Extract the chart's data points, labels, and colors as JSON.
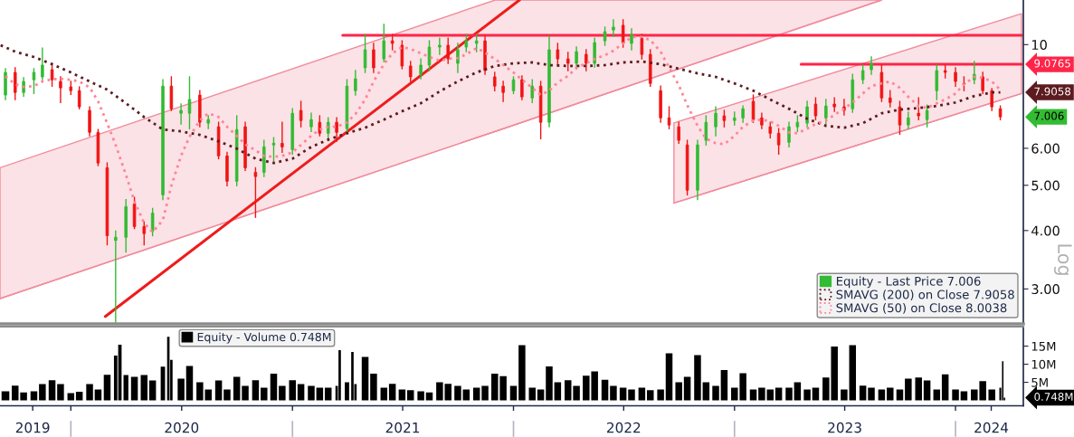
{
  "chart_data": [
    {
      "type": "candlestick",
      "ylabel": "Log",
      "log": true,
      "xlim": [
        "2019-09-06",
        "2024-04-22"
      ],
      "ylim": [
        2.525,
        12.46
      ],
      "yticks": [
        {
          "value": 3,
          "label": "3.00"
        },
        {
          "value": 4,
          "label": "4.00"
        },
        {
          "value": 5,
          "label": "5.00"
        },
        {
          "value": 6,
          "label": "6.00"
        },
        10
      ],
      "tick_labels": "y",
      "legend": "bottom right",
      "annotations": [
        {
          "text": "7.9058",
          "x": "2024-04-22",
          "y": 7.9058
        }
      ],
      "x": [
        "2019-09-15",
        "2019-10-01",
        "2019-10-15",
        "2019-11-01",
        "2019-11-15",
        "2019-12-01",
        "2019-12-15",
        "2020-01-01",
        "2020-01-15",
        "2020-02-01",
        "2020-02-15",
        "2020-03-01",
        "2020-03-15",
        "2020-04-01",
        "2020-04-15",
        "2020-05-01",
        "2020-05-15",
        "2020-06-01",
        "2020-06-15",
        "2020-07-01",
        "2020-07-15",
        "2020-08-01",
        "2020-08-15",
        "2020-09-01",
        "2020-09-15",
        "2020-10-01",
        "2020-10-15",
        "2020-11-01",
        "2020-11-15",
        "2020-12-01",
        "2020-12-15",
        "2021-01-01",
        "2021-01-15",
        "2021-02-01",
        "2021-02-15",
        "2021-03-01",
        "2021-03-15",
        "2021-04-01",
        "2021-04-15",
        "2021-05-01",
        "2021-05-15",
        "2021-06-01",
        "2021-06-15",
        "2021-07-01",
        "2021-07-15",
        "2021-08-01",
        "2021-08-15",
        "2021-09-01",
        "2021-09-15",
        "2021-10-01",
        "2021-10-15",
        "2021-11-01",
        "2021-11-15",
        "2021-12-01",
        "2021-12-15",
        "2022-01-01",
        "2022-01-15",
        "2022-02-01",
        "2022-02-15",
        "2022-03-01",
        "2022-03-15",
        "2022-04-01",
        "2022-04-15",
        "2022-05-01",
        "2022-05-15",
        "2022-06-01",
        "2022-06-15",
        "2022-07-01",
        "2022-07-15",
        "2022-08-01",
        "2022-08-15",
        "2022-09-01",
        "2022-09-15",
        "2022-10-01",
        "2022-10-15",
        "2022-11-01",
        "2022-11-15",
        "2022-12-01",
        "2022-12-15",
        "2023-01-01",
        "2023-01-15",
        "2023-02-01",
        "2023-02-15",
        "2023-03-01",
        "2023-03-15",
        "2023-04-01",
        "2023-04-15",
        "2023-05-01",
        "2023-05-15",
        "2023-06-01",
        "2023-06-15",
        "2023-07-01",
        "2023-07-15",
        "2023-08-01",
        "2023-08-15",
        "2023-09-01",
        "2023-09-15",
        "2023-10-01",
        "2023-10-15",
        "2023-11-01",
        "2023-11-15",
        "2023-12-01",
        "2023-12-15",
        "2024-01-01",
        "2024-01-15",
        "2024-02-01",
        "2024-02-15",
        "2024-03-01",
        "2024-03-15"
      ],
      "series": [
        {
          "name": "Equity - Last Price 7.006",
          "type": "candlestick",
          "color": "#33bb33",
          "colors": [
            "#33bb33",
            "#f01414",
            "#33bb33",
            "#33bb33",
            "#33bb33",
            "#f01414",
            "#f01414",
            "#f01414",
            "#f01414",
            "#f01414",
            "#f01414",
            "#f01414",
            "#33bb33",
            "#33bb33",
            "#f01414",
            "#f01414",
            "#33bb33",
            "#33bb33",
            "#f01414",
            "#33bb33",
            "#33bb33",
            "#f01414",
            "#33bb33",
            "#f01414",
            "#f01414",
            "#33bb33",
            "#f01414",
            "#f01414",
            "#33bb33",
            "#33bb33",
            "#f01414",
            "#33bb33",
            "#f01414",
            "#33bb33",
            "#f01414",
            "#33bb33",
            "#f01414",
            "#33bb33",
            "#33bb33",
            "#33bb33",
            "#f01414",
            "#33bb33",
            "#f01414",
            "#f01414",
            "#f01414",
            "#33bb33",
            "#33bb33",
            "#33bb33",
            "#f01414",
            "#33bb33",
            "#33bb33",
            "#33bb33",
            "#f01414",
            "#f01414",
            "#f01414",
            "#33bb33",
            "#f01414",
            "#33bb33",
            "#f01414",
            "#33bb33",
            "#f01414",
            "#f01414",
            "#33bb33",
            "#f01414",
            "#33bb33",
            "#33bb33",
            "#33bb33",
            "#f01414",
            "#33bb33",
            "#f01414",
            "#f01414",
            "#f01414",
            "#f01414",
            "#f01414",
            "#f01414",
            "#33bb33",
            "#33bb33",
            "#33bb33",
            "#f01414",
            "#33bb33",
            "#33bb33",
            "#f01414",
            "#f01414",
            "#f01414",
            "#f01414",
            "#33bb33",
            "#33bb33",
            "#33bb33",
            "#f01414",
            "#33bb33",
            "#f01414",
            "#f01414",
            "#33bb33",
            "#33bb33",
            "#33bb33",
            "#f01414",
            "#f01414",
            "#f01414",
            "#33bb33",
            "#f01414",
            "#33bb33",
            "#33bb33",
            "#f01414",
            "#f01414",
            "#f01414",
            "#33bb33",
            "#f01414",
            "#f01414",
            "#f01414"
          ],
          "ohlc": [
            [
              7.8,
              8.88,
              7.63,
              8.72
            ],
            [
              8.72,
              8.92,
              7.63,
              7.9
            ],
            [
              7.9,
              8.49,
              7.76,
              8.34
            ],
            [
              8.41,
              8.88,
              7.86,
              8.72
            ],
            [
              8.53,
              9.83,
              8.41,
              9.04
            ],
            [
              8.84,
              9.12,
              8.15,
              8.41
            ],
            [
              8.34,
              8.53,
              7.52,
              8.08
            ],
            [
              8.12,
              8.34,
              7.83,
              7.97
            ],
            [
              7.97,
              8.12,
              7.29,
              7.36
            ],
            [
              7.23,
              7.36,
              6.38,
              6.49
            ],
            [
              6.49,
              6.58,
              5.51,
              5.58
            ],
            [
              5.45,
              5.58,
              3.73,
              3.9
            ],
            [
              3.81,
              3.99,
              2.55,
              3.87
            ],
            [
              3.87,
              4.66,
              3.6,
              4.5
            ],
            [
              4.56,
              4.71,
              4.04,
              4.08
            ],
            [
              4.08,
              4.17,
              3.73,
              3.94
            ],
            [
              3.99,
              4.46,
              3.9,
              4.36
            ],
            [
              4.77,
              8.41,
              4.66,
              8.15
            ],
            [
              8.15,
              8.53,
              7.23,
              7.29
            ],
            [
              7.13,
              7.46,
              6.76,
              7.23
            ],
            [
              7.13,
              8.53,
              6.61,
              7.63
            ],
            [
              7.8,
              7.97,
              6.67,
              6.82
            ],
            [
              6.79,
              7.04,
              6.61,
              6.91
            ],
            [
              6.67,
              6.82,
              5.7,
              5.78
            ],
            [
              5.78,
              5.88,
              4.99,
              5.1
            ],
            [
              5.1,
              7.04,
              4.99,
              6.58
            ],
            [
              6.67,
              6.82,
              5.38,
              5.45
            ],
            [
              5.33,
              5.45,
              4.27,
              5.22
            ],
            [
              5.33,
              6.24,
              5.22,
              6.04
            ],
            [
              6.1,
              6.32,
              5.63,
              6.15
            ],
            [
              6.15,
              6.82,
              5.88,
              6.04
            ],
            [
              5.96,
              7.29,
              5.83,
              7.13
            ],
            [
              7.23,
              7.56,
              6.67,
              6.88
            ],
            [
              6.67,
              7.13,
              6.52,
              6.91
            ],
            [
              6.82,
              7.04,
              6.38,
              6.46
            ],
            [
              6.46,
              6.97,
              6.32,
              6.82
            ],
            [
              6.82,
              6.97,
              6.21,
              6.49
            ],
            [
              6.61,
              8.41,
              6.49,
              8.15
            ],
            [
              7.97,
              8.8,
              7.8,
              8.45
            ],
            [
              8.92,
              10.51,
              8.72,
              9.75
            ],
            [
              9.75,
              10.06,
              8.72,
              8.92
            ],
            [
              9.32,
              11.05,
              9.2,
              10.19
            ],
            [
              10.19,
              10.51,
              9.75,
              10.06
            ],
            [
              9.97,
              10.19,
              8.88,
              9.0
            ],
            [
              9.0,
              9.2,
              8.34,
              8.53
            ],
            [
              8.64,
              9.32,
              8.45,
              9.04
            ],
            [
              9.04,
              10.19,
              8.8,
              9.88
            ],
            [
              9.88,
              10.32,
              9.53,
              9.97
            ],
            [
              9.97,
              10.32,
              9.12,
              9.32
            ],
            [
              9.12,
              10.06,
              8.72,
              9.75
            ],
            [
              9.88,
              10.51,
              9.66,
              10.19
            ],
            [
              10.06,
              10.51,
              9.66,
              10.19
            ],
            [
              10.19,
              10.42,
              8.64,
              8.8
            ],
            [
              8.53,
              8.72,
              7.97,
              8.15
            ],
            [
              8.15,
              8.34,
              7.56,
              7.9
            ],
            [
              7.97,
              8.53,
              7.86,
              8.41
            ],
            [
              8.41,
              8.57,
              7.63,
              7.73
            ],
            [
              7.69,
              8.41,
              7.52,
              8.15
            ],
            [
              8.15,
              8.34,
              6.29,
              6.82
            ],
            [
              6.82,
              10.42,
              6.67,
              9.75
            ],
            [
              9.75,
              10.06,
              9.04,
              9.32
            ],
            [
              9.32,
              9.62,
              8.8,
              9.12
            ],
            [
              9.12,
              9.88,
              8.88,
              9.66
            ],
            [
              9.53,
              9.75,
              8.8,
              9.12
            ],
            [
              9.12,
              10.32,
              8.96,
              10.1
            ],
            [
              10.19,
              10.9,
              9.97,
              10.66
            ],
            [
              10.75,
              11.3,
              10.42,
              10.9
            ],
            [
              11.0,
              11.3,
              9.88,
              10.06
            ],
            [
              10.06,
              10.8,
              9.75,
              10.51
            ],
            [
              10.32,
              10.51,
              9.32,
              9.53
            ],
            [
              9.53,
              9.75,
              8.15,
              8.26
            ],
            [
              7.97,
              8.15,
              6.82,
              6.97
            ],
            [
              6.97,
              7.36,
              6.61,
              6.73
            ],
            [
              6.67,
              6.82,
              6.15,
              6.24
            ],
            [
              6.1,
              6.24,
              4.77,
              4.88
            ],
            [
              4.88,
              6.24,
              4.66,
              6.1
            ],
            [
              6.24,
              7.04,
              6.1,
              6.82
            ],
            [
              6.67,
              7.36,
              6.38,
              7.13
            ],
            [
              7.04,
              7.23,
              6.67,
              6.88
            ],
            [
              6.88,
              7.17,
              6.73,
              6.97
            ],
            [
              6.97,
              7.39,
              6.82,
              7.29
            ],
            [
              7.56,
              7.8,
              6.82,
              6.91
            ],
            [
              6.97,
              7.13,
              6.61,
              6.73
            ],
            [
              6.67,
              6.82,
              6.32,
              6.46
            ],
            [
              6.46,
              6.61,
              5.83,
              6.1
            ],
            [
              6.18,
              6.82,
              6.04,
              6.67
            ],
            [
              6.67,
              7.04,
              6.52,
              6.82
            ],
            [
              6.79,
              7.56,
              6.67,
              7.36
            ],
            [
              7.46,
              7.69,
              6.91,
              7.04
            ],
            [
              6.97,
              7.63,
              6.76,
              7.39
            ],
            [
              7.46,
              7.69,
              7.2,
              7.36
            ],
            [
              7.36,
              7.63,
              7.07,
              7.23
            ],
            [
              7.29,
              8.64,
              7.17,
              8.41
            ],
            [
              8.41,
              9.04,
              8.26,
              8.8
            ],
            [
              8.84,
              9.41,
              8.64,
              9.12
            ],
            [
              8.72,
              9.04,
              7.56,
              7.69
            ],
            [
              7.69,
              7.97,
              7.36,
              7.52
            ],
            [
              7.36,
              7.56,
              6.43,
              6.73
            ],
            [
              6.73,
              7.17,
              6.61,
              6.97
            ],
            [
              7.13,
              7.69,
              6.91,
              7.04
            ],
            [
              6.91,
              7.42,
              6.67,
              7.23
            ],
            [
              7.97,
              9.04,
              7.63,
              8.8
            ],
            [
              8.8,
              9.04,
              8.49,
              8.72
            ],
            [
              8.72,
              8.92,
              8.15,
              8.34
            ],
            [
              8.26,
              8.53,
              7.97,
              8.23
            ],
            [
              8.41,
              9.2,
              8.26,
              8.64
            ],
            [
              8.53,
              8.72,
              7.86,
              7.97
            ],
            [
              7.97,
              8.05,
              7.23,
              7.36
            ],
            [
              7.29,
              7.39,
              6.91,
              7.006
            ]
          ],
          "value_labels": [
            null,
            null,
            null,
            null,
            null,
            null,
            null,
            null,
            null,
            null,
            null,
            null,
            null,
            null,
            null,
            null,
            null,
            null,
            null,
            null,
            null,
            null,
            null,
            null,
            null,
            null,
            null,
            null,
            null,
            null,
            null,
            null,
            null,
            null,
            null,
            null,
            null,
            null,
            null,
            null,
            null,
            null,
            null,
            null,
            null,
            null,
            null,
            null,
            null,
            null,
            null,
            null,
            null,
            null,
            null,
            null,
            null,
            null,
            null,
            null,
            null,
            null,
            null,
            null,
            null,
            null,
            null,
            null,
            null,
            null,
            null,
            null,
            null,
            null,
            null,
            null,
            null,
            null,
            null,
            null,
            null,
            null,
            null,
            null,
            null,
            null,
            null,
            null,
            null,
            null,
            null,
            null,
            null,
            null,
            null,
            null,
            null,
            null,
            null,
            null,
            null,
            null,
            null,
            null,
            null,
            null,
            null,
            null,
            "7.006"
          ]
        },
        {
          "name": "SMAVG (200) on Close 7.9058",
          "type": "line",
          "color": "#5c1b1f",
          "line_style": "dotted",
          "x": [
            "2019-09-07",
            "2019-10-01",
            "2019-11-01",
            "2019-12-01",
            "2020-01-01",
            "2020-02-01",
            "2020-03-01",
            "2020-04-01",
            "2020-05-01",
            "2020-06-01",
            "2020-07-01",
            "2020-08-01",
            "2020-09-01",
            "2020-10-01",
            "2020-11-01",
            "2020-12-01",
            "2021-01-01",
            "2021-02-01",
            "2021-03-01",
            "2021-04-01",
            "2021-05-01",
            "2021-06-01",
            "2021-07-01",
            "2021-08-01",
            "2021-09-01",
            "2021-10-01",
            "2021-11-01",
            "2021-12-01",
            "2022-01-01",
            "2022-02-01",
            "2022-03-01",
            "2022-04-01",
            "2022-05-01",
            "2022-06-01",
            "2022-07-01",
            "2022-08-01",
            "2022-09-01",
            "2022-10-01",
            "2022-11-01",
            "2022-12-01",
            "2023-01-01",
            "2023-02-01",
            "2023-03-01",
            "2023-04-01",
            "2023-05-01",
            "2023-06-01",
            "2023-07-01",
            "2023-08-01",
            "2023-09-01",
            "2023-10-01",
            "2023-11-01",
            "2023-12-01",
            "2024-01-01",
            "2024-02-01",
            "2024-03-01",
            "2024-03-15"
          ],
          "values": [
            9.97,
            9.66,
            9.41,
            9.08,
            8.72,
            8.34,
            8.01,
            7.49,
            7.0,
            6.58,
            6.52,
            6.41,
            6.21,
            5.99,
            5.7,
            5.58,
            5.7,
            6.04,
            6.26,
            6.46,
            6.64,
            6.91,
            7.2,
            7.49,
            7.94,
            8.34,
            8.72,
            9.0,
            9.12,
            9.16,
            9.04,
            9.0,
            9.0,
            9.04,
            9.16,
            9.2,
            9.08,
            8.88,
            8.68,
            8.53,
            8.26,
            7.97,
            7.63,
            7.29,
            6.94,
            6.7,
            6.64,
            6.79,
            7.13,
            7.26,
            7.32,
            7.39,
            7.52,
            7.76,
            7.9,
            7.9058
          ]
        },
        {
          "name": "SMAVG (50) on Close 8.0038",
          "type": "line",
          "color": "#ff8596",
          "line_style": "dotted",
          "values": [
            8.55,
            8.23,
            8.12,
            8.15,
            8.34,
            8.43,
            8.45,
            8.41,
            8.34,
            8.1,
            7.56,
            6.79,
            6.1,
            5.26,
            4.62,
            4.15,
            3.97,
            4.21,
            4.99,
            5.78,
            6.35,
            6.88,
            7.13,
            7.0,
            6.67,
            6.38,
            6.12,
            5.94,
            5.78,
            5.75,
            5.78,
            5.88,
            6.1,
            6.38,
            6.58,
            6.67,
            6.67,
            6.82,
            7.1,
            7.63,
            8.34,
            9.08,
            9.58,
            9.88,
            9.79,
            9.58,
            9.41,
            9.24,
            9.32,
            9.36,
            9.53,
            9.83,
            9.62,
            9.32,
            9.04,
            8.72,
            8.41,
            8.08,
            7.8,
            7.97,
            8.3,
            8.57,
            8.92,
            9.12,
            9.32,
            9.49,
            9.71,
            10.06,
            10.38,
            10.38,
            10.23,
            9.66,
            8.92,
            8.19,
            7.42,
            6.7,
            6.29,
            6.15,
            6.12,
            6.38,
            6.67,
            6.88,
            6.91,
            6.85,
            6.7,
            6.49,
            6.46,
            6.61,
            6.76,
            6.88,
            7.07,
            7.29,
            7.52,
            7.86,
            8.15,
            8.26,
            8.34,
            8.08,
            7.73,
            7.39,
            7.32,
            7.49,
            7.63,
            7.86,
            8.23,
            8.53,
            8.49,
            8.34,
            8.0038
          ]
        },
        {
          "type": "line",
          "color": "#f08c9c",
          "x": [
            "2019-09-06",
            "2021-12-02",
            "2023-09-01"
          ],
          "values": [
            2.86,
            6.52,
            12.46
          ],
          "lower": [
            2.86,
            6.52,
            12.46
          ],
          "upper": [
            5.45,
            12.46,
            12.46
          ]
        },
        {
          "type": "line",
          "color": "#f08c9c",
          "x": [
            "2022-09-23",
            "2024-04-19"
          ],
          "values": [
            4.58,
            7.86
          ],
          "lower": [
            4.58,
            7.86
          ],
          "upper": [
            6.8,
            11.65
          ]
        },
        {
          "type": "line",
          "color": "#ee1c1c",
          "x": [
            "2020-02-27",
            "2022-01-11"
          ],
          "values": [
            2.62,
            12.46
          ]
        },
        {
          "type": "line",
          "color": "#ff2448",
          "x": [
            "2021-03-25",
            "2024-04-19"
          ],
          "values": [
            10.47,
            10.47
          ]
        },
        {
          "type": "line",
          "color": "#ff2448",
          "x": [
            "2023-04-21",
            "2024-04-19"
          ],
          "values": [
            9.0765,
            9.0765
          ],
          "value_labels": [
            null,
            "9.0765"
          ]
        }
      ]
    },
    {
      "type": "bar",
      "xlim": [
        "2019-09-06",
        "2024-04-22"
      ],
      "ylim": [
        -1.5,
        20.4
      ],
      "yticks": [
        {
          "value": 5,
          "label": "5M"
        },
        {
          "value": 10,
          "label": "10M"
        },
        {
          "value": 15,
          "label": "15M"
        }
      ],
      "xticks": [
        {
          "value": "2019-10-30",
          "label": "2019"
        },
        {
          "value": "2020-01-01",
          "label": null
        },
        {
          "value": "2020-07-02",
          "label": "2020"
        },
        {
          "value": "2021-01-01",
          "label": null
        },
        {
          "value": "2021-07-02",
          "label": "2021"
        },
        {
          "value": "2022-01-01",
          "label": null
        },
        {
          "value": "2022-07-02",
          "label": "2022"
        },
        {
          "value": "2023-01-01",
          "label": null
        },
        {
          "value": "2023-07-02",
          "label": "2023"
        },
        {
          "value": "2024-01-01",
          "label": null
        },
        {
          "value": "2024-02-29",
          "label": "2024"
        }
      ],
      "legend": "top left",
      "annotations": [
        "0.748M"
      ],
      "x": [
        "2019-09-15",
        "2019-10-01",
        "2019-10-15",
        "2019-11-01",
        "2019-11-15",
        "2019-12-01",
        "2019-12-15",
        "2020-01-01",
        "2020-01-15",
        "2020-02-01",
        "2020-02-15",
        "2020-03-01",
        "2020-03-15",
        "2020-03-22",
        "2020-04-01",
        "2020-04-15",
        "2020-05-01",
        "2020-05-15",
        "2020-06-01",
        "2020-06-10",
        "2020-06-15",
        "2020-07-01",
        "2020-07-15",
        "2020-08-01",
        "2020-08-15",
        "2020-09-01",
        "2020-09-15",
        "2020-10-01",
        "2020-10-15",
        "2020-11-01",
        "2020-11-15",
        "2020-12-01",
        "2020-12-15",
        "2021-01-01",
        "2021-01-15",
        "2021-02-01",
        "2021-02-15",
        "2021-03-01",
        "2021-03-15",
        "2021-03-20",
        "2021-04-01",
        "2021-04-10",
        "2021-04-15",
        "2021-05-01",
        "2021-05-15",
        "2021-06-01",
        "2021-06-15",
        "2021-07-01",
        "2021-07-15",
        "2021-08-01",
        "2021-08-15",
        "2021-09-01",
        "2021-09-15",
        "2021-10-01",
        "2021-10-15",
        "2021-11-01",
        "2021-11-15",
        "2021-12-01",
        "2021-12-15",
        "2022-01-01",
        "2022-01-15",
        "2022-02-01",
        "2022-02-15",
        "2022-03-01",
        "2022-03-15",
        "2022-04-01",
        "2022-04-15",
        "2022-05-01",
        "2022-05-15",
        "2022-06-01",
        "2022-06-15",
        "2022-07-01",
        "2022-07-15",
        "2022-08-01",
        "2022-08-15",
        "2022-09-01",
        "2022-09-15",
        "2022-10-01",
        "2022-10-15",
        "2022-11-01",
        "2022-11-15",
        "2022-12-01",
        "2022-12-15",
        "2023-01-01",
        "2023-01-15",
        "2023-02-01",
        "2023-02-15",
        "2023-03-01",
        "2023-03-15",
        "2023-04-01",
        "2023-04-15",
        "2023-05-01",
        "2023-05-15",
        "2023-06-01",
        "2023-06-15",
        "2023-07-01",
        "2023-07-15",
        "2023-08-01",
        "2023-08-15",
        "2023-09-01",
        "2023-09-15",
        "2023-10-01",
        "2023-10-15",
        "2023-11-01",
        "2023-11-15",
        "2023-12-01",
        "2023-12-15",
        "2024-01-01",
        "2024-01-15",
        "2024-02-01",
        "2024-02-15",
        "2024-03-01",
        "2024-03-15",
        "2024-03-19",
        "2024-03-22"
      ],
      "series": [
        {
          "name": "Equity - Volume 0.748M",
          "color": "#000000",
          "values": [
            2.5,
            4.1,
            2.2,
            2.5,
            4.5,
            5.6,
            4.5,
            2.0,
            2.4,
            4.5,
            3.0,
            7.1,
            12.4,
            15.4,
            7.0,
            6.5,
            7.0,
            5.5,
            9.3,
            17.6,
            11.2,
            6.0,
            9.5,
            5.0,
            3.0,
            5.5,
            3.0,
            6.5,
            4.0,
            5.6,
            3.5,
            7.4,
            4.0,
            5.6,
            4.5,
            4.0,
            3.5,
            3.5,
            4.0,
            13.9,
            5.0,
            13.4,
            4.5,
            12.0,
            7.4,
            3.5,
            4.6,
            3.0,
            2.8,
            2.5,
            2.2,
            5.0,
            4.6,
            4.0,
            3.0,
            3.5,
            4.0,
            7.4,
            6.7,
            4.0,
            15.3,
            3.5,
            3.0,
            9.4,
            5.0,
            5.6,
            4.0,
            6.8,
            8.0,
            5.7,
            4.0,
            3.5,
            3.0,
            3.5,
            2.8,
            3.0,
            13.0,
            5.0,
            6.5,
            12.5,
            5.0,
            4.0,
            8.4,
            3.5,
            7.5,
            3.0,
            3.5,
            3.0,
            3.5,
            3.5,
            5.0,
            3.0,
            3.5,
            6.3,
            14.9,
            3.0,
            15.3,
            4.1,
            3.5,
            3.0,
            3.5,
            3.0,
            6.0,
            6.3,
            5.5,
            3.0,
            7.2,
            3.0,
            2.5,
            3.0,
            5.3,
            3.0,
            3.5,
            10.8,
            0.748
          ]
        }
      ]
    }
  ]
}
